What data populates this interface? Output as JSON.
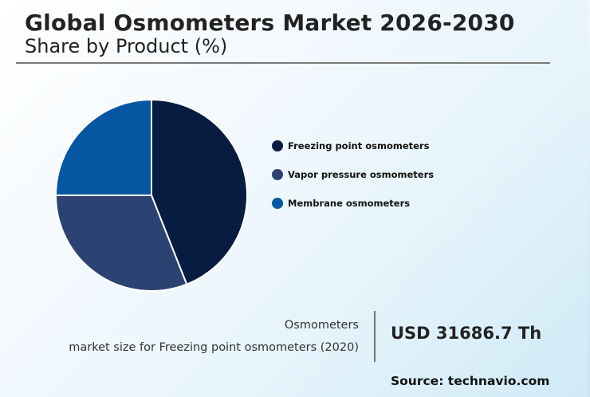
{
  "header": {
    "title": "Global Osmometers Market 2026-2030",
    "subtitle": "Share by Product (%)"
  },
  "chart_data": {
    "type": "pie",
    "title": "Global Osmometers Market 2026-2030",
    "subtitle": "Share by Product (%)",
    "categories": [
      "Freezing point osmometers",
      "Vapor pressure osmometers",
      "Membrane osmometers"
    ],
    "values": [
      44,
      31,
      25
    ],
    "colors": [
      "#071c40",
      "#2c4272",
      "#0457a0"
    ],
    "start_angle_deg": 0,
    "direction": "clockwise",
    "legend_position": "right"
  },
  "legend": {
    "items": [
      {
        "label": "Freezing point osmometers",
        "color": "#071c40"
      },
      {
        "label": "Vapor pressure osmometers",
        "color": "#2c4272"
      },
      {
        "label": "Membrane osmometers",
        "color": "#0457a0"
      }
    ]
  },
  "footer": {
    "market_label_line1": "Osmometers",
    "market_label_line2": "market size for Freezing point osmometers (2020)",
    "market_value": "USD 31686.7 Th",
    "source": "Source: technavio.com"
  }
}
